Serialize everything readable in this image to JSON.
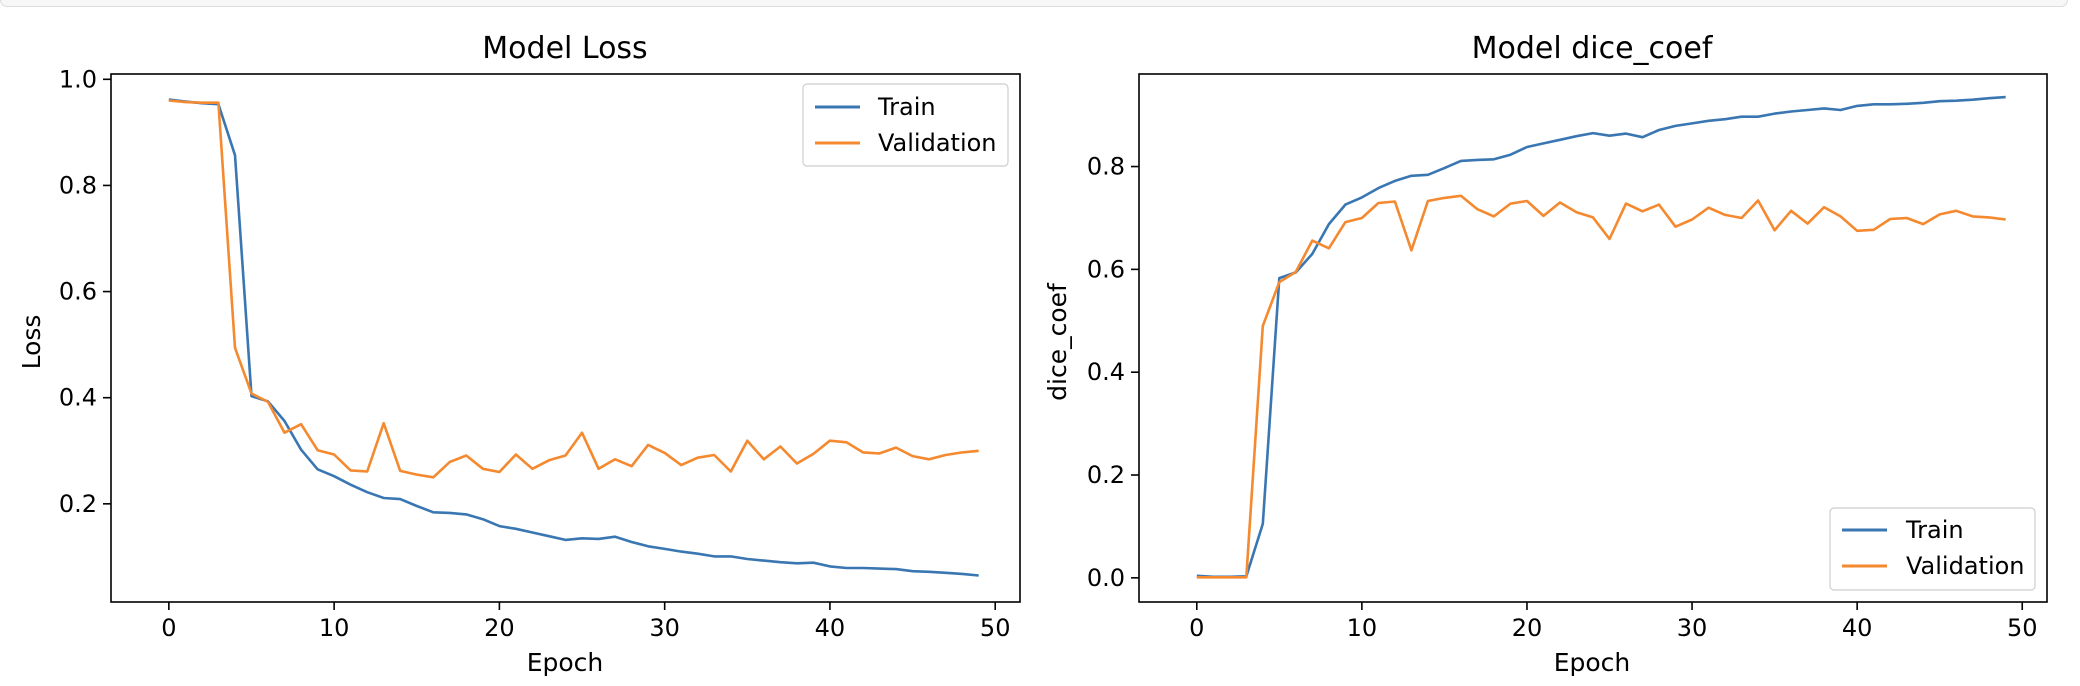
{
  "colors": {
    "train": "#3a77b2",
    "validation": "#f4892f"
  },
  "chart_data": [
    {
      "type": "line",
      "title": "Model Loss",
      "xlabel": "Epoch",
      "ylabel": "Loss",
      "xlim": [
        -3.5,
        51.5
      ],
      "ylim": [
        0.015,
        1.01
      ],
      "xticks": [
        0,
        10,
        20,
        30,
        40,
        50
      ],
      "yticks": [
        0.2,
        0.4,
        0.6,
        0.8,
        1.0
      ],
      "xtick_labels": [
        "0",
        "10",
        "20",
        "30",
        "40",
        "50"
      ],
      "ytick_labels": [
        "0.2",
        "0.4",
        "0.6",
        "0.8",
        "1.0"
      ],
      "legend_position": "upper right",
      "grid": false,
      "series": [
        {
          "name": "Train",
          "color": "#3a77b2",
          "values": [
            0.962,
            0.958,
            0.955,
            0.953,
            0.857,
            0.403,
            0.393,
            0.356,
            0.302,
            0.265,
            0.252,
            0.236,
            0.222,
            0.211,
            0.209,
            0.196,
            0.184,
            0.183,
            0.18,
            0.171,
            0.158,
            0.153,
            0.146,
            0.139,
            0.132,
            0.135,
            0.134,
            0.138,
            0.128,
            0.12,
            0.115,
            0.11,
            0.106,
            0.101,
            0.101,
            0.096,
            0.093,
            0.09,
            0.088,
            0.089,
            0.082,
            0.079,
            0.079,
            0.078,
            0.077,
            0.073,
            0.072,
            0.07,
            0.068,
            0.065
          ]
        },
        {
          "name": "Validation",
          "color": "#f4892f",
          "values": [
            0.96,
            0.957,
            0.956,
            0.956,
            0.494,
            0.408,
            0.392,
            0.334,
            0.35,
            0.301,
            0.293,
            0.263,
            0.261,
            0.352,
            0.262,
            0.255,
            0.25,
            0.279,
            0.291,
            0.266,
            0.26,
            0.293,
            0.266,
            0.282,
            0.291,
            0.334,
            0.266,
            0.284,
            0.271,
            0.311,
            0.296,
            0.273,
            0.287,
            0.292,
            0.261,
            0.319,
            0.284,
            0.308,
            0.276,
            0.294,
            0.319,
            0.316,
            0.297,
            0.295,
            0.306,
            0.29,
            0.284,
            0.292,
            0.297,
            0.3
          ]
        }
      ]
    },
    {
      "type": "line",
      "title": "Model dice_coef",
      "xlabel": "Epoch",
      "ylabel": "dice_coef",
      "xlim": [
        -3.5,
        51.5
      ],
      "ylim": [
        -0.047,
        0.98
      ],
      "xticks": [
        0,
        10,
        20,
        30,
        40,
        50
      ],
      "yticks": [
        0.0,
        0.2,
        0.4,
        0.6,
        0.8
      ],
      "xtick_labels": [
        "0",
        "10",
        "20",
        "30",
        "40",
        "50"
      ],
      "ytick_labels": [
        "0.0",
        "0.2",
        "0.4",
        "0.6",
        "0.8"
      ],
      "legend_position": "lower right",
      "grid": false,
      "series": [
        {
          "name": "Train",
          "color": "#3a77b2",
          "values": [
            0.004,
            0.002,
            0.002,
            0.003,
            0.105,
            0.583,
            0.594,
            0.63,
            0.688,
            0.726,
            0.74,
            0.758,
            0.772,
            0.782,
            0.784,
            0.797,
            0.811,
            0.813,
            0.814,
            0.823,
            0.838,
            0.845,
            0.852,
            0.859,
            0.865,
            0.86,
            0.864,
            0.857,
            0.871,
            0.879,
            0.884,
            0.889,
            0.892,
            0.897,
            0.897,
            0.903,
            0.907,
            0.91,
            0.913,
            0.91,
            0.918,
            0.921,
            0.921,
            0.922,
            0.924,
            0.927,
            0.928,
            0.93,
            0.933,
            0.935
          ]
        },
        {
          "name": "Validation",
          "color": "#f4892f",
          "values": [
            0.001,
            0.001,
            0.001,
            0.001,
            0.49,
            0.575,
            0.595,
            0.656,
            0.641,
            0.692,
            0.7,
            0.729,
            0.732,
            0.637,
            0.733,
            0.739,
            0.743,
            0.717,
            0.703,
            0.728,
            0.733,
            0.704,
            0.73,
            0.711,
            0.701,
            0.659,
            0.728,
            0.713,
            0.726,
            0.683,
            0.697,
            0.72,
            0.706,
            0.7,
            0.734,
            0.676,
            0.714,
            0.689,
            0.721,
            0.703,
            0.675,
            0.677,
            0.698,
            0.7,
            0.688,
            0.707,
            0.714,
            0.703,
            0.701,
            0.697
          ]
        }
      ]
    }
  ]
}
